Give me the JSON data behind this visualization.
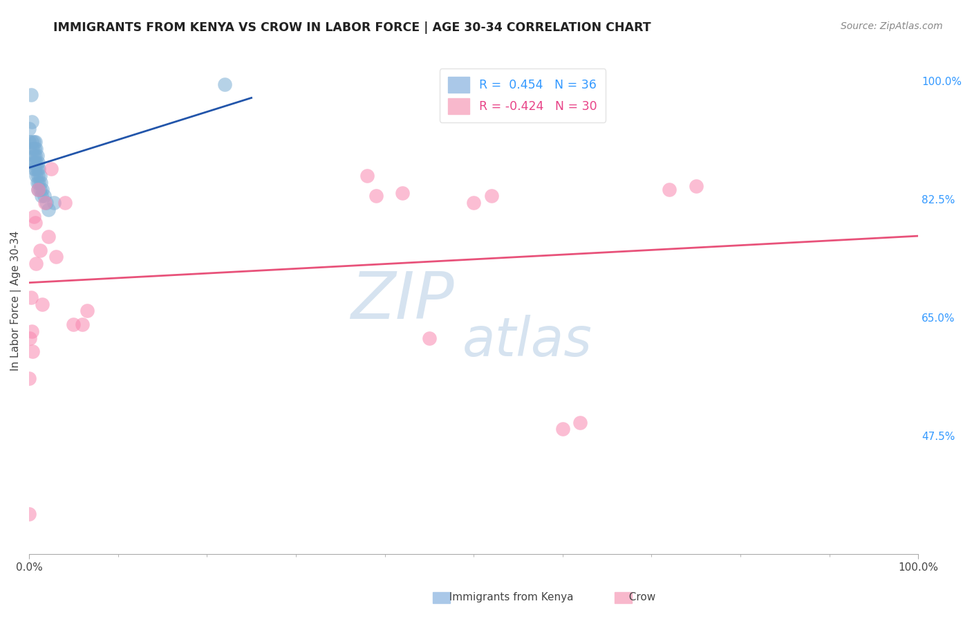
{
  "title": "IMMIGRANTS FROM KENYA VS CROW IN LABOR FORCE | AGE 30-34 CORRELATION CHART",
  "source": "Source: ZipAtlas.com",
  "ylabel": "In Labor Force | Age 30-34",
  "xlim": [
    0.0,
    1.0
  ],
  "ylim": [
    0.3,
    1.05
  ],
  "y_ticks_right": [
    1.0,
    0.825,
    0.65,
    0.475
  ],
  "y_tick_labels_right": [
    "100.0%",
    "82.5%",
    "65.0%",
    "47.5%"
  ],
  "grid_color": "#cccccc",
  "background_color": "#ffffff",
  "kenya_color": "#7aadd4",
  "crow_color": "#f987b0",
  "kenya_line_color": "#2255aa",
  "crow_line_color": "#e8527a",
  "kenya_R": 0.454,
  "kenya_N": 36,
  "crow_R": -0.424,
  "crow_N": 30,
  "kenya_points_x": [
    0.002,
    0.003,
    0.0,
    0.0,
    0.003,
    0.004,
    0.004,
    0.005,
    0.005,
    0.005,
    0.006,
    0.006,
    0.007,
    0.007,
    0.007,
    0.008,
    0.008,
    0.008,
    0.009,
    0.009,
    0.009,
    0.01,
    0.01,
    0.01,
    0.011,
    0.011,
    0.012,
    0.012,
    0.013,
    0.014,
    0.015,
    0.017,
    0.019,
    0.022,
    0.028,
    0.22
  ],
  "kenya_points_y": [
    0.98,
    0.94,
    0.93,
    0.91,
    0.91,
    0.9,
    0.88,
    0.91,
    0.89,
    0.87,
    0.9,
    0.88,
    0.91,
    0.89,
    0.87,
    0.9,
    0.88,
    0.86,
    0.89,
    0.87,
    0.85,
    0.88,
    0.86,
    0.84,
    0.87,
    0.85,
    0.86,
    0.84,
    0.85,
    0.83,
    0.84,
    0.83,
    0.82,
    0.81,
    0.82,
    0.995
  ],
  "crow_points_x": [
    0.005,
    0.007,
    0.008,
    0.01,
    0.012,
    0.015,
    0.018,
    0.022,
    0.025,
    0.03,
    0.04,
    0.05,
    0.06,
    0.065,
    0.0,
    0.0,
    0.001,
    0.002,
    0.003,
    0.004,
    0.38,
    0.39,
    0.42,
    0.45,
    0.5,
    0.52,
    0.6,
    0.62,
    0.72,
    0.75
  ],
  "crow_points_y": [
    0.8,
    0.79,
    0.73,
    0.84,
    0.75,
    0.67,
    0.82,
    0.77,
    0.87,
    0.74,
    0.82,
    0.64,
    0.64,
    0.66,
    0.56,
    0.36,
    0.62,
    0.68,
    0.63,
    0.6,
    0.86,
    0.83,
    0.835,
    0.62,
    0.82,
    0.83,
    0.485,
    0.495,
    0.84,
    0.845
  ],
  "watermark_zip": "ZIP",
  "watermark_atlas": "atlas"
}
